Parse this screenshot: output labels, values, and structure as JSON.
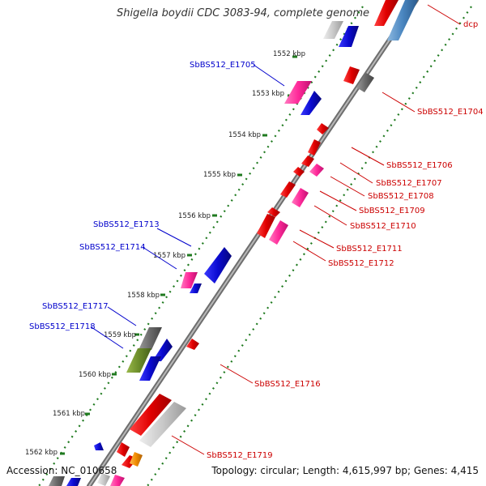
{
  "header": {
    "title": "Shigella boydii CDC 3083-94, complete genome"
  },
  "footer": {
    "accession": "Accession: NC_010658",
    "topology": "Topology: circular; Length: 4,615,997 bp; Genes: 4,415"
  },
  "colors": {
    "forward_strand": "#e00000",
    "reverse_strand": "#0a0ad0",
    "rna": "#ff2a9a",
    "pseudo": "#bdbdbd",
    "other": "#6b8c2a",
    "backbone": "#8e8e8e",
    "ticks": "#1f7a1f",
    "label_forward": "#cc0000",
    "label_reverse": "#0000cc"
  },
  "ticks": [
    "1552 kbp",
    "1553 kbp",
    "1554 kbp",
    "1555 kbp",
    "1556 kbp",
    "1557 kbp",
    "1558 kbp",
    "1559 kbp",
    "1560 kbp",
    "1561 kbp",
    "1562 kbp"
  ],
  "labels_left": [
    "SbBS512_E1705",
    "SbBS512_E1713",
    "SbBS512_E1714",
    "SbBS512_E1717",
    "SbBS512_E1718"
  ],
  "labels_right": [
    "dcp",
    "SbBS512_E1704",
    "SbBS512_E1706",
    "SbBS512_E1707",
    "SbBS512_E1708",
    "SbBS512_E1709",
    "SbBS512_E1710",
    "SbBS512_E1711",
    "SbBS512_E1712",
    "SbBS512_E1716",
    "SbBS512_E1719"
  ]
}
